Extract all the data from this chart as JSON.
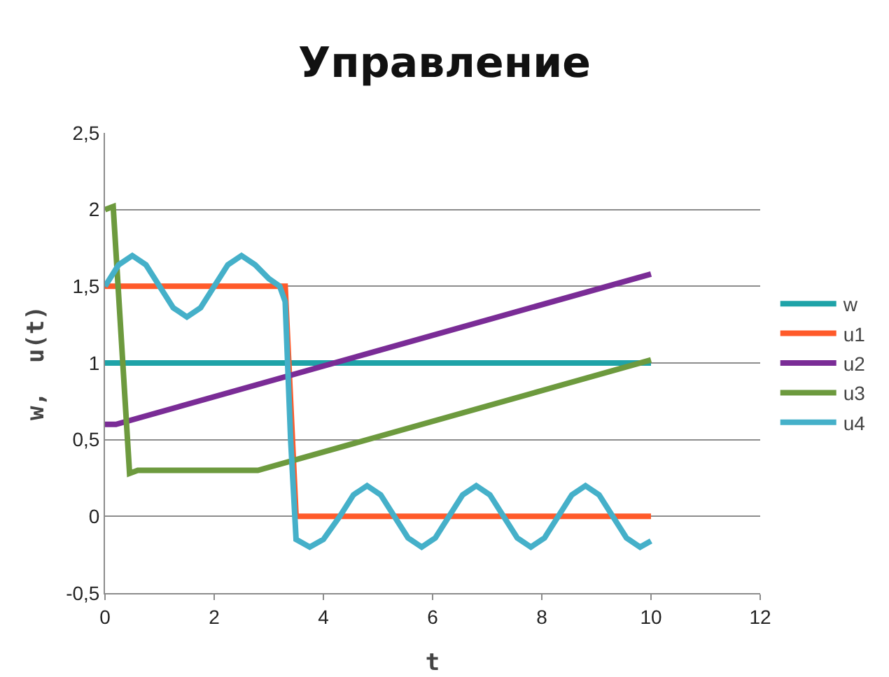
{
  "chart_data": {
    "type": "line",
    "title": "Управление",
    "xlabel": "t",
    "ylabel": "w,  u(t)",
    "xlim": [
      0,
      12
    ],
    "xticks": [
      0,
      2,
      4,
      6,
      8,
      10,
      12
    ],
    "ylim": [
      -0.5,
      2.5
    ],
    "yticks": [
      {
        "value": -0.5,
        "label": "-0,5"
      },
      0,
      {
        "value": 0.5,
        "label": "0,5"
      },
      1,
      {
        "value": 1.5,
        "label": "1,5"
      },
      2,
      {
        "value": 2.5,
        "label": "2,5"
      }
    ],
    "grid": "y",
    "legend": "right",
    "marker": "none",
    "line_style": "solid",
    "series": [
      {
        "name": "w",
        "color": "#1fa3a8",
        "x": [
          0,
          10
        ],
        "values": [
          1,
          1
        ]
      },
      {
        "name": "u1",
        "color": "#ff5a2a",
        "x": [
          0,
          3.3,
          3.5,
          10
        ],
        "values": [
          1.5,
          1.5,
          0,
          0
        ]
      },
      {
        "name": "u2",
        "color": "#7a2c96",
        "x": [
          0,
          0.2,
          10
        ],
        "values": [
          0.6,
          0.6,
          1.58
        ]
      },
      {
        "name": "u3",
        "color": "#6d9a3e",
        "x": [
          0,
          0.15,
          0.45,
          0.6,
          2.8,
          10
        ],
        "values": [
          2,
          2.02,
          0.28,
          0.3,
          0.3,
          1.02
        ]
      },
      {
        "name": "u4",
        "color": "#45b0c9",
        "x": [
          0,
          0.25,
          0.5,
          0.75,
          1,
          1.25,
          1.5,
          1.75,
          2,
          2.25,
          2.5,
          2.75,
          3,
          3.2,
          3.3,
          3.4,
          3.5,
          3.75,
          4,
          4.3,
          4.55,
          4.8,
          5.05,
          5.3,
          5.55,
          5.8,
          6.05,
          6.3,
          6.55,
          6.8,
          7.05,
          7.3,
          7.55,
          7.8,
          8.05,
          8.3,
          8.55,
          8.8,
          9.05,
          9.3,
          9.55,
          9.8,
          10
        ],
        "values": [
          1.5,
          1.64,
          1.7,
          1.64,
          1.5,
          1.36,
          1.3,
          1.36,
          1.5,
          1.64,
          1.7,
          1.64,
          1.55,
          1.5,
          1.4,
          0.5,
          -0.15,
          -0.2,
          -0.15,
          0,
          0.14,
          0.2,
          0.14,
          0,
          -0.14,
          -0.2,
          -0.14,
          0,
          0.14,
          0.2,
          0.14,
          0,
          -0.14,
          -0.2,
          -0.14,
          0,
          0.14,
          0.2,
          0.14,
          0,
          -0.14,
          -0.2,
          -0.16
        ]
      }
    ]
  }
}
